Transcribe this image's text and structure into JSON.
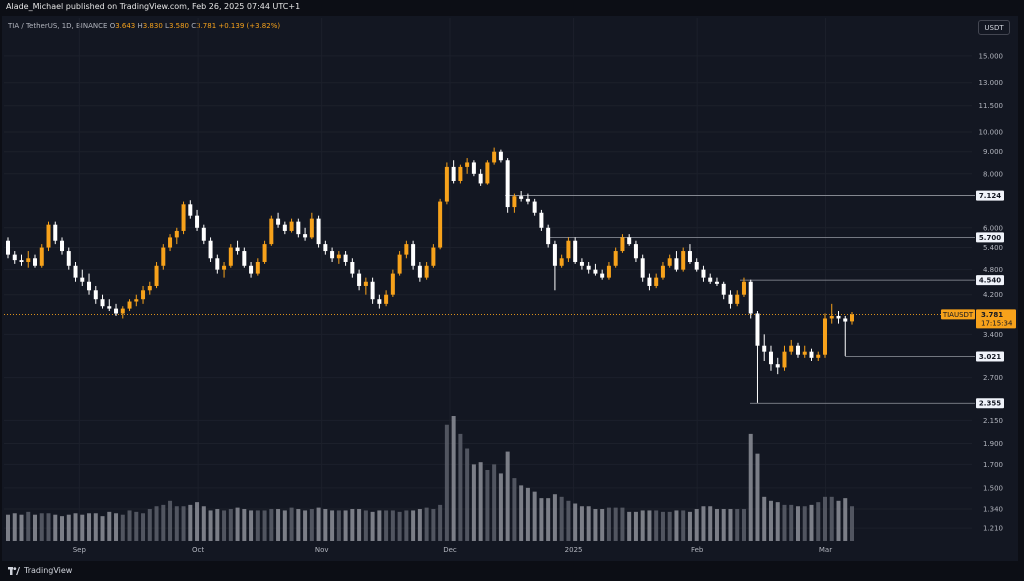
{
  "header": {
    "publisher": "Alade_Michael published on TradingView.com, Feb 26, 2025 07:44 UTC+1"
  },
  "legend": {
    "symbol": "TIA / TetherUS, 1D, BINANCE",
    "o_label": "O",
    "o_value": "3.643",
    "h_label": "H",
    "h_value": "3.830",
    "l_label": "L",
    "l_value": "3.580",
    "c_label": "C",
    "c_value": "3.781",
    "change": "+0.139 (+3.82%)"
  },
  "toolbar": {
    "currency": "USDT"
  },
  "footer": {
    "brand": "TradingView"
  },
  "colors": {
    "up": "#f7a21b",
    "down": "#ffffff",
    "price_line": "#f7a21b",
    "background": "#131722"
  },
  "chart_data": {
    "type": "candlestick",
    "symbol": "TIAUSDT",
    "scale": "log",
    "ylim": [
      1.13,
      16.5
    ],
    "x_tick_labels": [
      "Sep",
      "Oct",
      "Nov",
      "Dec",
      "2025",
      "Feb",
      "Mar"
    ],
    "y_tick_labels": [
      "15.000",
      "13.000",
      "11.500",
      "10.000",
      "9.000",
      "8.000",
      "6.000",
      "5.400",
      "4.800",
      "4.200",
      "3.400",
      "2.700",
      "2.150",
      "1.900",
      "1.700",
      "1.500",
      "1.340",
      "1.210"
    ],
    "horizontal_levels": [
      "7.124",
      "5.700",
      "4.540",
      "3.021",
      "2.355"
    ],
    "current_price": {
      "symbol": "TIAUSDT",
      "price": "3.781",
      "countdown": "17:15:34"
    },
    "ohlc": [
      [
        5.6,
        5.7,
        5.1,
        5.2
      ],
      [
        5.2,
        5.3,
        4.95,
        5.05
      ],
      [
        5.05,
        5.2,
        4.9,
        5.0
      ],
      [
        5.0,
        5.3,
        4.85,
        5.1
      ],
      [
        5.1,
        5.2,
        4.85,
        4.9
      ],
      [
        4.9,
        5.5,
        4.85,
        5.4
      ],
      [
        5.4,
        6.2,
        5.3,
        6.1
      ],
      [
        6.1,
        6.2,
        5.5,
        5.6
      ],
      [
        5.6,
        5.7,
        5.2,
        5.3
      ],
      [
        5.3,
        5.4,
        4.8,
        4.9
      ],
      [
        4.9,
        5.0,
        4.5,
        4.6
      ],
      [
        4.6,
        4.8,
        4.4,
        4.5
      ],
      [
        4.5,
        4.7,
        4.2,
        4.3
      ],
      [
        4.3,
        4.4,
        4.0,
        4.1
      ],
      [
        4.1,
        4.2,
        3.9,
        3.95
      ],
      [
        3.95,
        4.1,
        3.85,
        3.9
      ],
      [
        3.9,
        4.0,
        3.75,
        3.8
      ],
      [
        3.8,
        3.95,
        3.7,
        3.9
      ],
      [
        3.9,
        4.1,
        3.85,
        4.05
      ],
      [
        4.05,
        4.2,
        3.95,
        4.1
      ],
      [
        4.1,
        4.4,
        4.0,
        4.3
      ],
      [
        4.3,
        4.5,
        4.2,
        4.4
      ],
      [
        4.4,
        5.0,
        4.35,
        4.9
      ],
      [
        4.9,
        5.5,
        4.8,
        5.4
      ],
      [
        5.4,
        5.8,
        5.3,
        5.7
      ],
      [
        5.7,
        6.0,
        5.5,
        5.9
      ],
      [
        5.9,
        6.9,
        5.8,
        6.8
      ],
      [
        6.8,
        6.95,
        6.3,
        6.4
      ],
      [
        6.4,
        6.6,
        5.9,
        6.0
      ],
      [
        6.0,
        6.1,
        5.5,
        5.6
      ],
      [
        5.6,
        5.7,
        5.0,
        5.1
      ],
      [
        5.1,
        5.2,
        4.7,
        4.8
      ],
      [
        4.8,
        5.0,
        4.6,
        4.9
      ],
      [
        4.9,
        5.5,
        4.85,
        5.4
      ],
      [
        5.4,
        5.6,
        5.2,
        5.3
      ],
      [
        5.3,
        5.4,
        4.85,
        4.9
      ],
      [
        4.9,
        5.0,
        4.6,
        4.7
      ],
      [
        4.7,
        5.1,
        4.65,
        5.0
      ],
      [
        5.0,
        5.6,
        4.95,
        5.5
      ],
      [
        5.5,
        6.4,
        5.45,
        6.3
      ],
      [
        6.3,
        6.5,
        6.0,
        6.1
      ],
      [
        6.1,
        6.2,
        5.8,
        5.9
      ],
      [
        5.9,
        6.3,
        5.85,
        6.2
      ],
      [
        6.2,
        6.3,
        5.7,
        5.8
      ],
      [
        5.8,
        6.0,
        5.6,
        5.7
      ],
      [
        5.7,
        6.5,
        5.65,
        6.3
      ],
      [
        6.3,
        6.4,
        5.4,
        5.5
      ],
      [
        5.5,
        5.6,
        5.2,
        5.3
      ],
      [
        5.3,
        5.4,
        5.0,
        5.1
      ],
      [
        5.1,
        5.3,
        4.95,
        5.2
      ],
      [
        5.2,
        5.3,
        4.9,
        5.0
      ],
      [
        5.0,
        5.1,
        4.6,
        4.7
      ],
      [
        4.7,
        4.8,
        4.3,
        4.4
      ],
      [
        4.4,
        4.6,
        4.2,
        4.5
      ],
      [
        4.5,
        4.6,
        4.0,
        4.1
      ],
      [
        4.1,
        4.2,
        3.9,
        4.0
      ],
      [
        4.0,
        4.3,
        3.95,
        4.2
      ],
      [
        4.2,
        4.8,
        4.15,
        4.7
      ],
      [
        4.7,
        5.3,
        4.65,
        5.2
      ],
      [
        5.2,
        5.6,
        5.1,
        5.5
      ],
      [
        5.5,
        5.6,
        4.8,
        4.9
      ],
      [
        4.9,
        5.0,
        4.5,
        4.6
      ],
      [
        4.6,
        5.0,
        4.55,
        4.9
      ],
      [
        4.9,
        5.5,
        4.85,
        5.4
      ],
      [
        5.4,
        7.0,
        5.35,
        6.9
      ],
      [
        6.9,
        8.5,
        6.8,
        8.3
      ],
      [
        8.3,
        8.6,
        7.6,
        7.7
      ],
      [
        7.7,
        8.4,
        7.6,
        8.3
      ],
      [
        8.3,
        8.7,
        8.0,
        8.5
      ],
      [
        8.5,
        8.6,
        7.9,
        8.0
      ],
      [
        8.0,
        8.2,
        7.5,
        7.6
      ],
      [
        7.6,
        8.6,
        7.55,
        8.5
      ],
      [
        8.5,
        9.2,
        8.4,
        9.0
      ],
      [
        9.0,
        9.1,
        8.5,
        8.6
      ],
      [
        8.6,
        8.7,
        6.5,
        6.7
      ],
      [
        6.7,
        7.2,
        6.5,
        7.1
      ],
      [
        7.1,
        7.3,
        6.9,
        7.0
      ],
      [
        7.0,
        7.2,
        6.8,
        6.9
      ],
      [
        6.9,
        7.0,
        6.4,
        6.5
      ],
      [
        6.5,
        6.6,
        5.9,
        6.0
      ],
      [
        6.0,
        6.1,
        5.4,
        5.5
      ],
      [
        5.5,
        5.6,
        4.3,
        4.9
      ],
      [
        4.9,
        5.2,
        4.85,
        5.1
      ],
      [
        5.1,
        5.7,
        5.0,
        5.6
      ],
      [
        5.6,
        5.7,
        4.95,
        5.0
      ],
      [
        5.0,
        5.1,
        4.8,
        4.9
      ],
      [
        4.9,
        5.0,
        4.7,
        4.8
      ],
      [
        4.8,
        4.95,
        4.65,
        4.7
      ],
      [
        4.7,
        4.8,
        4.55,
        4.6
      ],
      [
        4.6,
        5.0,
        4.55,
        4.9
      ],
      [
        4.9,
        5.4,
        4.85,
        5.3
      ],
      [
        5.3,
        5.8,
        5.25,
        5.7
      ],
      [
        5.7,
        5.8,
        5.45,
        5.5
      ],
      [
        5.5,
        5.6,
        5.0,
        5.1
      ],
      [
        5.1,
        5.2,
        4.5,
        4.6
      ],
      [
        4.6,
        4.7,
        4.3,
        4.4
      ],
      [
        4.4,
        4.7,
        4.35,
        4.6
      ],
      [
        4.6,
        5.0,
        4.55,
        4.9
      ],
      [
        4.9,
        5.2,
        4.85,
        5.1
      ],
      [
        5.1,
        5.3,
        4.75,
        4.8
      ],
      [
        4.8,
        5.4,
        4.75,
        5.3
      ],
      [
        5.3,
        5.5,
        4.95,
        5.0
      ],
      [
        5.0,
        5.1,
        4.75,
        4.8
      ],
      [
        4.8,
        4.9,
        4.5,
        4.6
      ],
      [
        4.6,
        4.7,
        4.45,
        4.5
      ],
      [
        4.5,
        4.6,
        4.4,
        4.45
      ],
      [
        4.45,
        4.5,
        4.1,
        4.2
      ],
      [
        4.2,
        4.3,
        3.9,
        4.0
      ],
      [
        4.0,
        4.3,
        3.95,
        4.2
      ],
      [
        4.2,
        4.6,
        4.15,
        4.5
      ],
      [
        4.5,
        4.55,
        3.7,
        3.8
      ],
      [
        3.8,
        3.85,
        2.36,
        3.2
      ],
      [
        3.2,
        3.4,
        2.95,
        3.1
      ],
      [
        3.1,
        3.2,
        2.8,
        2.9
      ],
      [
        2.9,
        3.0,
        2.75,
        2.85
      ],
      [
        2.85,
        3.2,
        2.8,
        3.1
      ],
      [
        3.1,
        3.3,
        3.05,
        3.2
      ],
      [
        3.2,
        3.25,
        3.0,
        3.05
      ],
      [
        3.05,
        3.2,
        3.0,
        3.1
      ],
      [
        3.1,
        3.15,
        2.95,
        3.0
      ],
      [
        3.0,
        3.1,
        2.95,
        3.05
      ],
      [
        3.05,
        3.8,
        3.0,
        3.7
      ],
      [
        3.7,
        4.0,
        3.6,
        3.75
      ],
      [
        3.75,
        3.85,
        3.6,
        3.7
      ],
      [
        3.7,
        3.75,
        3.03,
        3.64
      ],
      [
        3.643,
        3.83,
        3.58,
        3.781
      ]
    ],
    "volume": [
      1.3,
      1.31,
      1.3,
      1.32,
      1.3,
      1.31,
      1.31,
      1.3,
      1.29,
      1.3,
      1.31,
      1.3,
      1.31,
      1.31,
      1.29,
      1.32,
      1.31,
      1.3,
      1.33,
      1.32,
      1.31,
      1.34,
      1.36,
      1.37,
      1.4,
      1.36,
      1.36,
      1.37,
      1.39,
      1.36,
      1.33,
      1.34,
      1.33,
      1.34,
      1.35,
      1.34,
      1.33,
      1.33,
      1.33,
      1.34,
      1.34,
      1.33,
      1.35,
      1.34,
      1.33,
      1.34,
      1.35,
      1.34,
      1.33,
      1.33,
      1.33,
      1.34,
      1.34,
      1.33,
      1.32,
      1.33,
      1.33,
      1.33,
      1.32,
      1.33,
      1.33,
      1.34,
      1.35,
      1.34,
      1.37,
      2.1,
      2.2,
      2.0,
      1.85,
      1.7,
      1.72,
      1.65,
      1.7,
      1.62,
      1.82,
      1.58,
      1.52,
      1.5,
      1.47,
      1.42,
      1.42,
      1.45,
      1.43,
      1.4,
      1.38,
      1.36,
      1.36,
      1.34,
      1.34,
      1.35,
      1.35,
      1.35,
      1.32,
      1.32,
      1.33,
      1.33,
      1.33,
      1.32,
      1.32,
      1.33,
      1.33,
      1.32,
      1.34,
      1.36,
      1.36,
      1.34,
      1.34,
      1.34,
      1.34,
      1.34,
      2.0,
      1.8,
      1.43,
      1.4,
      1.39,
      1.37,
      1.37,
      1.36,
      1.36,
      1.37,
      1.39,
      1.43,
      1.43,
      1.4,
      1.42,
      1.36
    ]
  }
}
